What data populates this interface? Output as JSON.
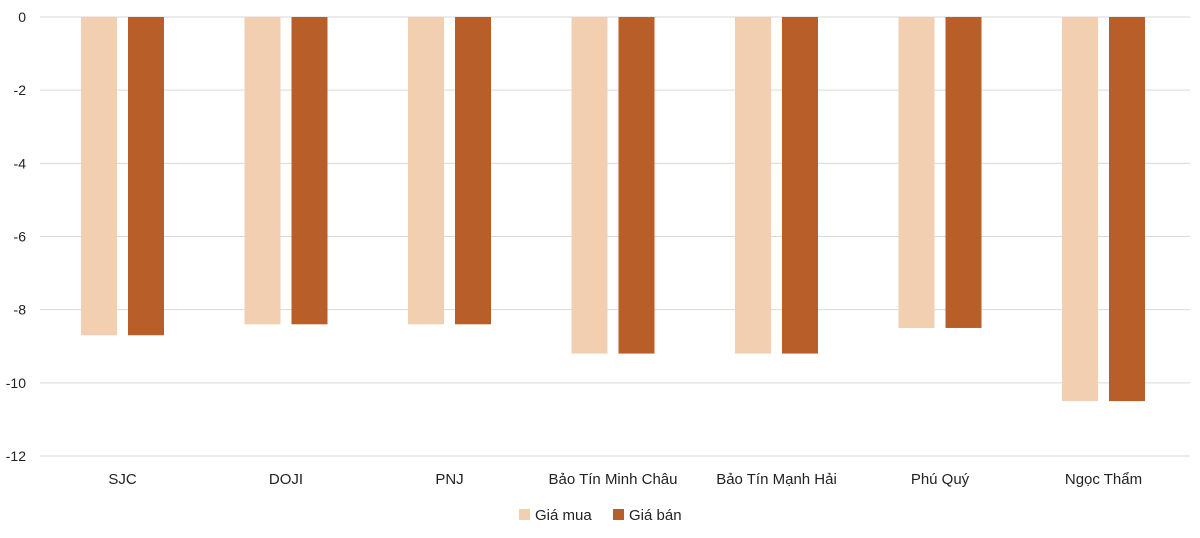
{
  "chart_data": {
    "type": "bar",
    "categories": [
      "SJC",
      "DOJI",
      "PNJ",
      "Bảo Tín Minh Châu",
      "Bảo Tín Mạnh Hải",
      "Phú Quý",
      "Ngọc Thẩm"
    ],
    "series": [
      {
        "name": "Giá mua",
        "color": "#f2cfb1",
        "values": [
          -8.7,
          -8.4,
          -8.4,
          -9.2,
          -9.2,
          -8.5,
          -10.5
        ]
      },
      {
        "name": "Giá bán",
        "color": "#b85f29",
        "values": [
          -8.7,
          -8.4,
          -8.4,
          -9.2,
          -9.2,
          -8.5,
          -10.5
        ]
      }
    ],
    "yticks": [
      0,
      -2,
      -4,
      -6,
      -8,
      -10,
      -12
    ],
    "ylim": [
      -12,
      0
    ],
    "grid": true,
    "legend_position": "bottom"
  }
}
